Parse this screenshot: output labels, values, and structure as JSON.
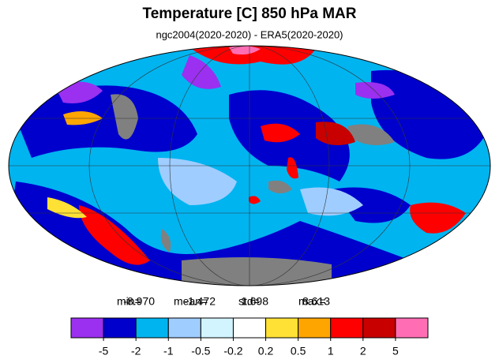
{
  "title": "Temperature [C] 850 hPa MAR",
  "subtitle": "ngc2004(2020-2020) - ERA5(2020-2020)",
  "stats": [
    {
      "label": "min=",
      "value": "-8.970"
    },
    {
      "label": "mean=",
      "value": "-1.472"
    },
    {
      "label": "std=",
      "value": "1.698"
    },
    {
      "label": "max=",
      "value": "8.613"
    }
  ],
  "colorbar": {
    "levels": [
      -5,
      -2,
      -1,
      -0.5,
      -0.2,
      0.2,
      0.5,
      1,
      2,
      5
    ],
    "colors": [
      "#9b30f0",
      "#0000cd",
      "#00b4f0",
      "#9fcdff",
      "#d2f4ff",
      "#ffffff",
      "#ffe135",
      "#ffa500",
      "#ff0000",
      "#c80000",
      "#ff6eb4"
    ]
  }
}
